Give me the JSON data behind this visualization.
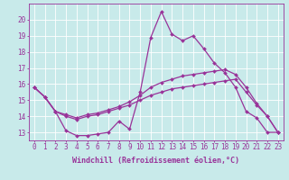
{
  "background_color": "#c8eaea",
  "grid_color": "#ffffff",
  "line_color": "#993399",
  "marker": "D",
  "marker_size": 2.0,
  "linewidth": 0.9,
  "xlabel": "Windchill (Refroidissement éolien,°C)",
  "xlabel_fontsize": 6.0,
  "tick_fontsize": 5.5,
  "ylim": [
    12.5,
    21.0
  ],
  "xlim": [
    -0.5,
    23.5
  ],
  "yticks": [
    13,
    14,
    15,
    16,
    17,
    18,
    19,
    20
  ],
  "xticks": [
    0,
    1,
    2,
    3,
    4,
    5,
    6,
    7,
    8,
    9,
    10,
    11,
    12,
    13,
    14,
    15,
    16,
    17,
    18,
    19,
    20,
    21,
    22,
    23
  ],
  "series": [
    [
      15.8,
      15.2,
      14.3,
      13.1,
      12.8,
      12.8,
      12.9,
      13.0,
      13.7,
      13.2,
      15.5,
      18.9,
      20.5,
      19.1,
      18.7,
      19.0,
      18.2,
      17.3,
      16.7,
      15.8,
      14.3,
      13.9,
      13.0,
      13.0
    ],
    [
      15.8,
      15.2,
      14.3,
      14.1,
      13.9,
      14.1,
      14.2,
      14.4,
      14.6,
      14.9,
      15.3,
      15.8,
      16.1,
      16.3,
      16.5,
      16.6,
      16.7,
      16.8,
      16.9,
      16.6,
      15.8,
      14.8,
      14.0,
      13.0
    ],
    [
      15.8,
      15.2,
      14.3,
      14.0,
      13.8,
      14.0,
      14.1,
      14.3,
      14.5,
      14.7,
      15.0,
      15.3,
      15.5,
      15.7,
      15.8,
      15.9,
      16.0,
      16.1,
      16.2,
      16.3,
      15.5,
      14.7,
      14.0,
      13.0
    ]
  ]
}
